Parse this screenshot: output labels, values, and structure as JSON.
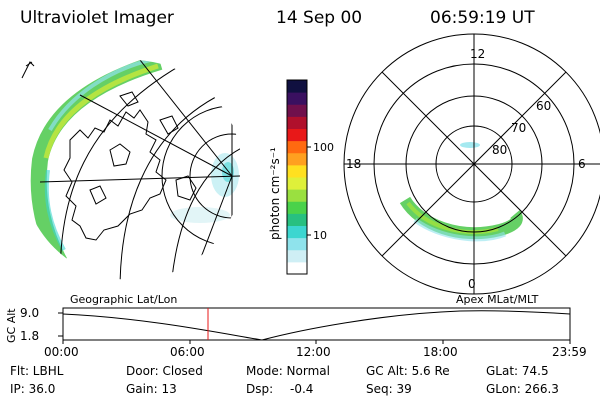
{
  "header": {
    "instrument": "Ultraviolet Imager",
    "date": "14 Sep 00",
    "time": "06:59:19 UT"
  },
  "colorbar": {
    "unit": "photon cm⁻²s⁻¹",
    "tick_labels": [
      "100",
      "10"
    ],
    "colors": [
      "#ffffff",
      "#cfeff5",
      "#8fe3ec",
      "#3cd6d0",
      "#28c080",
      "#4ad24a",
      "#9ae040",
      "#dff03a",
      "#ffe020",
      "#ffa020",
      "#ff6a10",
      "#e81818",
      "#b0102c",
      "#70104c",
      "#3a1060",
      "#101040"
    ]
  },
  "polar_plot": {
    "mlt_labels": {
      "top": "12",
      "left": "18",
      "right": "6",
      "bottom": "0"
    },
    "mlat_labels": [
      "60",
      "70",
      "80"
    ]
  },
  "map_labels": {
    "left": "Geographic Lat/Lon",
    "right": "Apex  MLat/MLT"
  },
  "altitude_plot": {
    "axis_label": "GC Alt",
    "y_ticks": [
      "9.0",
      "1.8"
    ],
    "x_ticks": [
      "00:00",
      "06:00",
      "12:00",
      "18:00",
      "23:59"
    ]
  },
  "info": {
    "flt": "Flt: LBHL",
    "ip": "IP: 36.0",
    "door": "Door: Closed",
    "gain": "Gain: 13",
    "mode": "Mode: Normal",
    "dsp_label": "Dsp:",
    "dsp_value": "-0.4",
    "gcalt": "GC Alt: 5.6 Re",
    "seq": "Seq: 39",
    "glat": "GLat:  74.5",
    "glon": "GLon: 266.3"
  }
}
